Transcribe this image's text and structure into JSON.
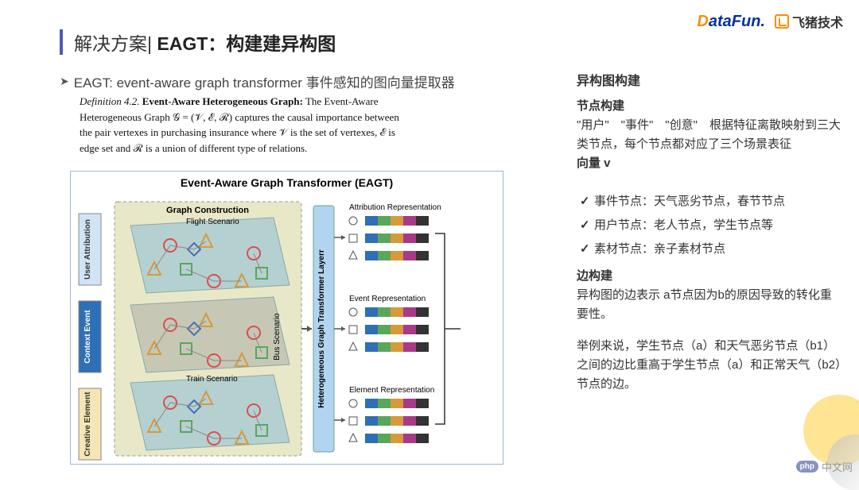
{
  "logos": {
    "datafun_d": "D",
    "datafun_rest": "ataFun.",
    "feizhu": "飞猪技术"
  },
  "title": {
    "light": "解决方案|",
    "bold": " EAGT：构建建异构图"
  },
  "subtitle": "EAGT: event-aware graph transformer  事件感知的图向量提取器",
  "definition": {
    "prefix": "Definition 4.2.",
    "name": "Event-Aware Heterogeneous Graph:",
    "body": " The Event-Aware Heterogeneous Graph 𝒢 = (𝒱, ℰ, ℛ) captures the causal importance between the pair vertexes in purchasing insurance where 𝒱 is the set of vertexes, ℰ is edge set and ℛ is a union of different type of relations."
  },
  "diagram": {
    "title": "Event-Aware Graph Transformer (EAGT)",
    "graph_construction_label": "Graph Construction",
    "scenarios": [
      "Flight Scenario",
      "Bus Scenario",
      "Train Scenario"
    ],
    "left_boxes": [
      {
        "label": "User Attribution",
        "color": "#d0e4f5"
      },
      {
        "label": "Context Event",
        "color": "#2f6fb5"
      },
      {
        "label": "Creative Element",
        "color": "#f5e6b3"
      }
    ],
    "hgt_label": "Heterogeneous Graph Transformer Layerr",
    "hgt_color": "#b3d4f0",
    "rep_labels": [
      "Attribution Representation",
      "Event Representation",
      "Element Representation"
    ],
    "node_colors": {
      "triangle": "#d69a3a",
      "circle": "#d94f4f",
      "square": "#5aa65a",
      "diamond": "#4a6fb5"
    },
    "bar_colors": [
      "#2f6fb5",
      "#5aa65a",
      "#d69a3a",
      "#a83a8a",
      "#333333"
    ],
    "border_color": "#9ab7d4",
    "background": "#ffffff",
    "construction_box_color": "#e8e8c8"
  },
  "right": {
    "heading1": "异构图构建",
    "heading2": "节点构建",
    "p1": "\"用户\"　\"事件\"　\"创意\"　根据特征离散映射到三大类节点，每个节点都对应了三个场景表征",
    "p1b": "向量 v",
    "bullets": [
      "事件节点：天气恶劣节点，春节节点",
      "用户节点：老人节点，学生节点等",
      "素材节点：亲子素材节点"
    ],
    "heading3": "边构建",
    "p2": "异构图的边表示 a节点因为b的原因导致的转化重要性。",
    "p3": "举例来说，学生节点（a）和天气恶劣节点（b1）之间的边比重高于学生节点（a）和正常天气（b2）节点的边。"
  },
  "watermark": "中文网"
}
